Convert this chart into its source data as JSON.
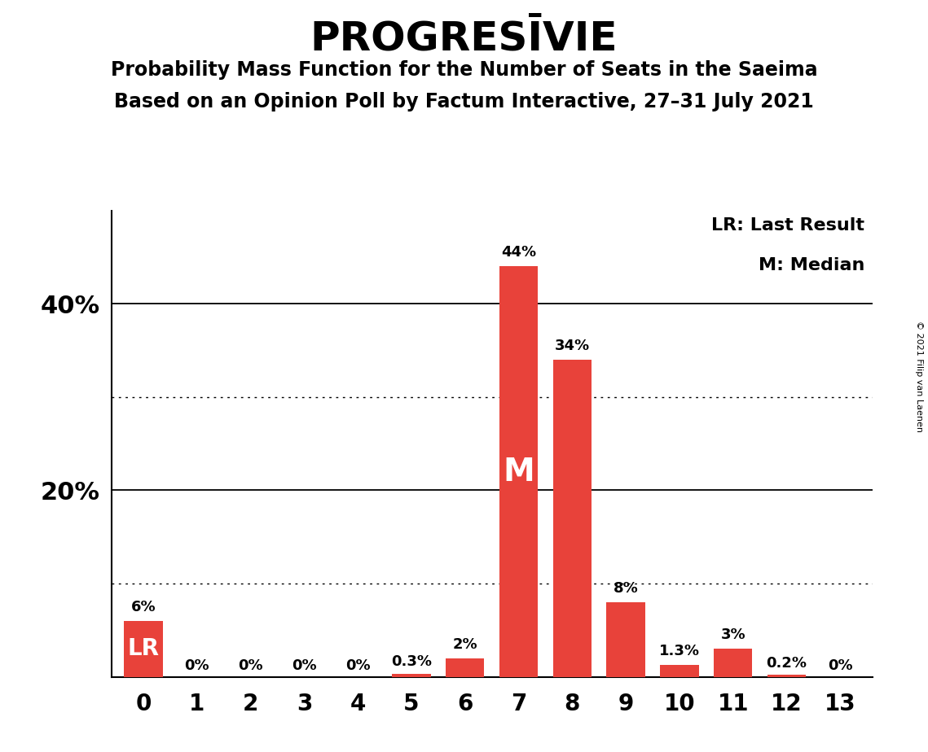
{
  "title": "PROGRESĪVIE",
  "subtitle1": "Probability Mass Function for the Number of Seats in the Saeima",
  "subtitle2": "Based on an Opinion Poll by Factum Interactive, 27–31 July 2021",
  "copyright": "© 2021 Filip van Laenen",
  "categories": [
    0,
    1,
    2,
    3,
    4,
    5,
    6,
    7,
    8,
    9,
    10,
    11,
    12,
    13
  ],
  "values": [
    6,
    0,
    0,
    0,
    0,
    0.3,
    2,
    44,
    34,
    8,
    1.3,
    3,
    0.2,
    0
  ],
  "bar_color": "#e8423a",
  "median_bar": 7,
  "lr_bar": 0,
  "labels": [
    "6%",
    "0%",
    "0%",
    "0%",
    "0%",
    "0.3%",
    "2%",
    "44%",
    "34%",
    "8%",
    "1.3%",
    "3%",
    "0.2%",
    "0%"
  ],
  "legend_lr": "LR: Last Result",
  "legend_m": "M: Median",
  "ylim": [
    0,
    50
  ],
  "ytick_positions": [
    20,
    40
  ],
  "ytick_labels": [
    "20%",
    "40%"
  ],
  "dotted_lines": [
    10,
    30
  ],
  "solid_lines": [
    20,
    40
  ],
  "background_color": "#ffffff"
}
